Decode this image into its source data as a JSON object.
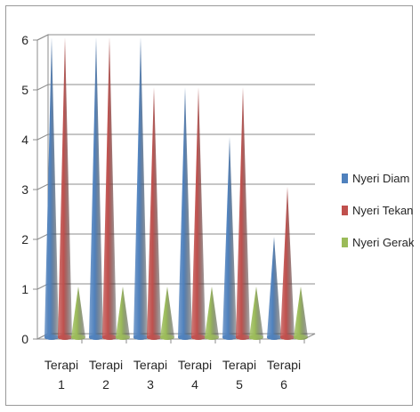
{
  "chart_data": {
    "type": "bar",
    "style": "3d-cone",
    "categories": [
      "Terapi\n1",
      "Terapi\n2",
      "Terapi\n3",
      "Terapi\n4",
      "Terapi\n5",
      "Terapi\n6"
    ],
    "series": [
      {
        "name": "Nyeri Diam",
        "color": "#4f81bd",
        "values": [
          6,
          6,
          6,
          5,
          4,
          2
        ]
      },
      {
        "name": "Nyeri Tekan",
        "color": "#c0504d",
        "values": [
          6,
          6,
          5,
          5,
          5,
          3
        ]
      },
      {
        "name": "Nyeri Gerak",
        "color": "#9bbb59",
        "values": [
          1,
          1,
          1,
          1,
          1,
          1
        ]
      }
    ],
    "ylim": [
      0,
      6
    ],
    "yticks": [
      0,
      1,
      2,
      3,
      4,
      5,
      6
    ],
    "grid": true,
    "legend": "right"
  }
}
